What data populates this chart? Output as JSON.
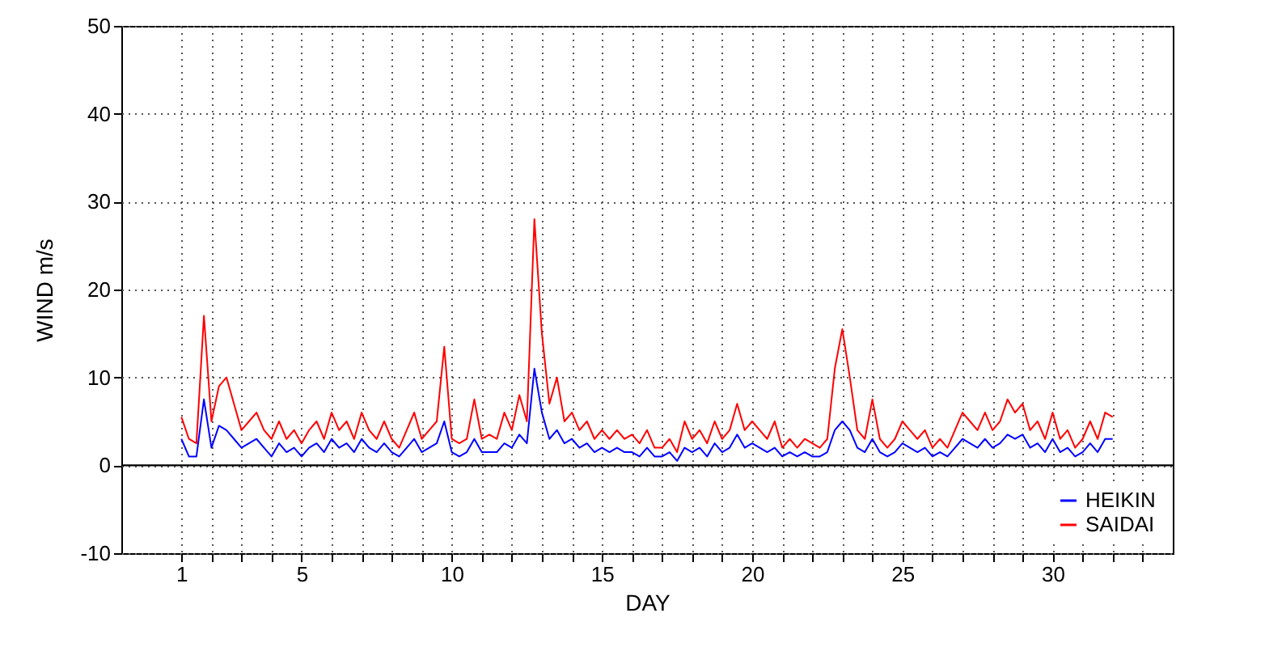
{
  "chart_data": {
    "type": "line",
    "xlabel": "DAY",
    "ylabel": "WIND m/s",
    "x": [
      1,
      1.25,
      1.5,
      1.75,
      2,
      2.25,
      2.5,
      2.75,
      3,
      3.25,
      3.5,
      3.75,
      4,
      4.25,
      4.5,
      4.75,
      5,
      5.25,
      5.5,
      5.75,
      6,
      6.25,
      6.5,
      6.75,
      7,
      7.25,
      7.5,
      7.75,
      8,
      8.25,
      8.5,
      8.75,
      9,
      9.25,
      9.5,
      9.75,
      10,
      10.25,
      10.5,
      10.75,
      11,
      11.25,
      11.5,
      11.75,
      12,
      12.25,
      12.5,
      12.75,
      13,
      13.25,
      13.5,
      13.75,
      14,
      14.25,
      14.5,
      14.75,
      15,
      15.25,
      15.5,
      15.75,
      16,
      16.25,
      16.5,
      16.75,
      17,
      17.25,
      17.5,
      17.75,
      18,
      18.25,
      18.5,
      18.75,
      19,
      19.25,
      19.5,
      19.75,
      20,
      20.25,
      20.5,
      20.75,
      21,
      21.25,
      21.5,
      21.75,
      22,
      22.25,
      22.5,
      22.75,
      23,
      23.25,
      23.5,
      23.75,
      24,
      24.25,
      24.5,
      24.75,
      25,
      25.25,
      25.5,
      25.75,
      26,
      26.25,
      26.5,
      26.75,
      27,
      27.25,
      27.5,
      27.75,
      28,
      28.25,
      28.5,
      28.75,
      29,
      29.25,
      29.5,
      29.75,
      30,
      30.25,
      30.5,
      30.75,
      31,
      31.25,
      31.5,
      31.75,
      32
    ],
    "series": [
      {
        "name": "HEIKIN",
        "color": "#0000ff",
        "values": [
          3,
          1,
          1,
          7.5,
          2,
          4.5,
          4,
          3,
          2,
          2.5,
          3,
          2,
          1,
          2.5,
          1.5,
          2,
          1,
          2,
          2.5,
          1.5,
          3,
          2,
          2.5,
          1.5,
          3,
          2,
          1.5,
          2.5,
          1.5,
          1,
          2,
          3,
          1.5,
          2,
          2.5,
          5,
          1.5,
          1,
          1.5,
          3,
          1.5,
          1.5,
          1.5,
          2.5,
          2,
          3.5,
          2.5,
          11,
          6,
          3,
          4,
          2.5,
          3,
          2,
          2.5,
          1.5,
          2,
          1.5,
          2,
          1.5,
          1.5,
          1,
          2,
          1,
          1,
          1.5,
          0.5,
          2,
          1.5,
          2,
          1,
          2.5,
          1.5,
          2,
          3.5,
          2,
          2.5,
          2,
          1.5,
          2,
          1,
          1.5,
          1,
          1.5,
          1,
          1,
          1.5,
          4,
          5,
          4,
          2,
          1.5,
          3,
          1.5,
          1,
          1.5,
          2.5,
          2,
          1.5,
          2,
          1,
          1.5,
          1,
          2,
          3,
          2.5,
          2,
          3,
          2,
          2.5,
          3.5,
          3,
          3.5,
          2,
          2.5,
          1.5,
          3,
          1.5,
          2,
          1,
          1.5,
          2.5,
          1.5,
          3,
          3
        ]
      },
      {
        "name": "SAIDAI",
        "color": "#ff0000",
        "values": [
          5.5,
          3,
          2.5,
          17,
          5,
          9,
          10,
          7,
          4,
          5,
          6,
          4,
          3,
          5,
          3,
          4,
          2.5,
          4,
          5,
          3,
          6,
          4,
          5,
          3,
          6,
          4,
          3,
          5,
          3,
          2,
          4,
          6,
          3,
          4,
          5,
          13.5,
          3,
          2.5,
          3,
          7.5,
          3,
          3.5,
          3,
          6,
          4,
          8,
          5,
          28,
          15,
          7,
          10,
          5,
          6,
          4,
          5,
          3,
          4,
          3,
          4,
          3,
          3.5,
          2.5,
          4,
          2,
          2,
          3,
          1.5,
          5,
          3,
          4,
          2.5,
          5,
          3,
          4,
          7,
          4,
          5,
          4,
          3,
          5,
          2,
          3,
          2,
          3,
          2.5,
          2,
          3,
          11,
          15.5,
          10,
          4,
          3,
          7.5,
          3,
          2,
          3,
          5,
          4,
          3,
          4,
          2,
          3,
          2,
          4,
          6,
          5,
          4,
          6,
          4,
          5,
          7.5,
          6,
          7,
          4,
          5,
          3,
          6,
          3,
          4,
          2,
          3,
          5,
          3,
          6,
          5.5
        ]
      }
    ],
    "xlim": [
      -1,
      34
    ],
    "xticks": [
      {
        "value": 1,
        "label": "1"
      },
      {
        "value": 2,
        "label": null
      },
      {
        "value": 3,
        "label": null
      },
      {
        "value": 4,
        "label": null
      },
      {
        "value": 5,
        "label": "5"
      },
      {
        "value": 6,
        "label": null
      },
      {
        "value": 7,
        "label": null
      },
      {
        "value": 8,
        "label": null
      },
      {
        "value": 9,
        "label": null
      },
      {
        "value": 10,
        "label": "10"
      },
      {
        "value": 11,
        "label": null
      },
      {
        "value": 12,
        "label": null
      },
      {
        "value": 13,
        "label": null
      },
      {
        "value": 14,
        "label": null
      },
      {
        "value": 15,
        "label": "15"
      },
      {
        "value": 16,
        "label": null
      },
      {
        "value": 17,
        "label": null
      },
      {
        "value": 18,
        "label": null
      },
      {
        "value": 19,
        "label": null
      },
      {
        "value": 20,
        "label": "20"
      },
      {
        "value": 21,
        "label": null
      },
      {
        "value": 22,
        "label": null
      },
      {
        "value": 23,
        "label": null
      },
      {
        "value": 24,
        "label": null
      },
      {
        "value": 25,
        "label": "25"
      },
      {
        "value": 26,
        "label": null
      },
      {
        "value": 27,
        "label": null
      },
      {
        "value": 28,
        "label": null
      },
      {
        "value": 29,
        "label": null
      },
      {
        "value": 30,
        "label": "30"
      },
      {
        "value": 31,
        "label": null
      },
      {
        "value": 32,
        "label": null
      },
      {
        "value": 33,
        "label": null
      }
    ],
    "ylim": [
      -10,
      50
    ],
    "yticks": [
      -10,
      0,
      10,
      20,
      30,
      40,
      50
    ],
    "ref_lines": [
      {
        "axis": "y",
        "value": 0,
        "color": "#000000"
      }
    ],
    "grid": true,
    "legend": "bottom right",
    "marker": "none",
    "line_style": "solid"
  }
}
